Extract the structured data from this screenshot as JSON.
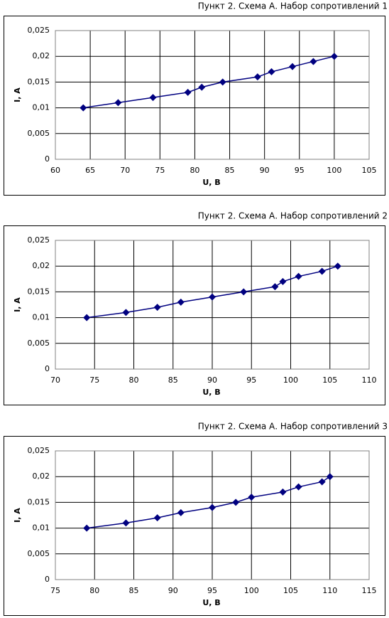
{
  "chart_data": [
    {
      "type": "line",
      "title": "Пункт 2. Схема А. Набор сопротивлений 1",
      "x_label": "U, B",
      "y_label": "I, A",
      "color": "#000080",
      "grid": true,
      "x": [
        64,
        69,
        74,
        79,
        81,
        84,
        89,
        91,
        94,
        97,
        100
      ],
      "values": [
        0.01,
        0.011,
        0.012,
        0.013,
        0.014,
        0.015,
        0.016,
        0.017,
        0.018,
        0.019,
        0.02
      ],
      "xlim": [
        60,
        105
      ],
      "xticks": [
        60,
        65,
        70,
        75,
        80,
        85,
        90,
        95,
        100,
        105
      ],
      "ylim": [
        0,
        0.025
      ],
      "yticks": [
        0,
        {
          "value": 0.005,
          "label": "0,005"
        },
        {
          "value": 0.01,
          "label": "0,01"
        },
        {
          "value": 0.015,
          "label": "0,015"
        },
        {
          "value": 0.02,
          "label": "0,02"
        },
        {
          "value": 0.025,
          "label": "0,025"
        }
      ]
    },
    {
      "type": "line",
      "title": "Пункт 2. Схема А. Набор сопротивлений 2",
      "x_label": "U, B",
      "y_label": "I, A",
      "color": "#000080",
      "grid": true,
      "x": [
        74,
        79,
        83,
        86,
        90,
        94,
        98,
        99,
        101,
        104,
        106
      ],
      "values": [
        0.01,
        0.011,
        0.012,
        0.013,
        0.014,
        0.015,
        0.016,
        0.017,
        0.018,
        0.019,
        0.02
      ],
      "xlim": [
        70,
        110
      ],
      "xticks": [
        70,
        75,
        80,
        85,
        90,
        95,
        100,
        105,
        110
      ],
      "ylim": [
        0,
        0.025
      ],
      "yticks": [
        0,
        {
          "value": 0.005,
          "label": "0,005"
        },
        {
          "value": 0.01,
          "label": "0,01"
        },
        {
          "value": 0.015,
          "label": "0,015"
        },
        {
          "value": 0.02,
          "label": "0,02"
        },
        {
          "value": 0.025,
          "label": "0,025"
        }
      ]
    },
    {
      "type": "line",
      "title": "Пункт 2. Схема А. Набор сопротивлений 3",
      "x_label": "U, B",
      "y_label": "I, A",
      "color": "#000080",
      "grid": true,
      "x": [
        79,
        84,
        88,
        91,
        95,
        98,
        100,
        104,
        106,
        109,
        110
      ],
      "values": [
        0.01,
        0.011,
        0.012,
        0.013,
        0.014,
        0.015,
        0.016,
        0.017,
        0.018,
        0.019,
        0.02
      ],
      "xlim": [
        75,
        115
      ],
      "xticks": [
        75,
        80,
        85,
        90,
        95,
        100,
        105,
        110,
        115
      ],
      "ylim": [
        0,
        0.025
      ],
      "yticks": [
        0,
        {
          "value": 0.005,
          "label": "0,005"
        },
        {
          "value": 0.01,
          "label": "0,01"
        },
        {
          "value": 0.015,
          "label": "0,015"
        },
        {
          "value": 0.02,
          "label": "0,02"
        },
        {
          "value": 0.025,
          "label": "0,025"
        }
      ]
    }
  ]
}
